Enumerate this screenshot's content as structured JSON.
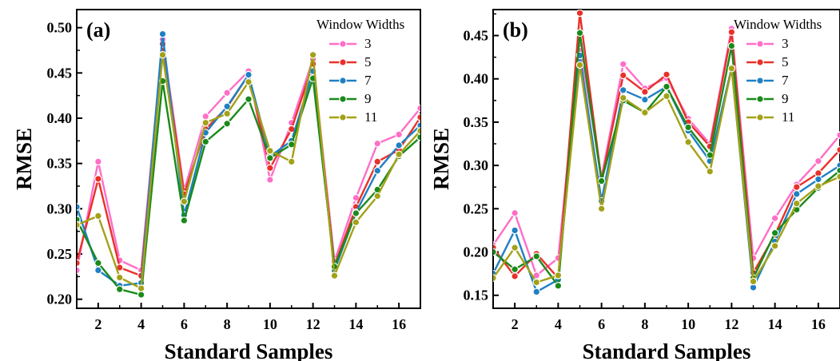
{
  "chart_data": [
    {
      "type": "line",
      "panel_label": "(a)",
      "xlabel": "Standard Samples",
      "ylabel": "RMSE",
      "xlim": [
        1,
        17
      ],
      "ylim": [
        0.19,
        0.52
      ],
      "x_ticks": [
        2,
        4,
        6,
        8,
        10,
        12,
        14,
        16
      ],
      "y_ticks": [
        0.2,
        0.25,
        0.3,
        0.35,
        0.4,
        0.45,
        0.5
      ],
      "y_tick_labels": [
        "0.20",
        "0.25",
        "0.30",
        "0.35",
        "0.40",
        "0.45",
        "0.50"
      ],
      "legend_title": "Window Widths",
      "legend_position": "top-right",
      "x": [
        1,
        2,
        3,
        4,
        5,
        6,
        7,
        8,
        9,
        10,
        11,
        12,
        13,
        14,
        15,
        16,
        17
      ],
      "series": [
        {
          "name": "3",
          "color": "#ff6ec7",
          "values": [
            0.232,
            0.352,
            0.243,
            0.232,
            0.487,
            0.32,
            0.402,
            0.428,
            0.452,
            0.332,
            0.395,
            0.465,
            0.242,
            0.312,
            0.372,
            0.382,
            0.411
          ]
        },
        {
          "name": "5",
          "color": "#e8312a",
          "values": [
            0.24,
            0.333,
            0.235,
            0.226,
            0.482,
            0.316,
            0.388,
            0.412,
            0.448,
            0.345,
            0.388,
            0.46,
            0.237,
            0.302,
            0.352,
            0.365,
            0.401
          ]
        },
        {
          "name": "7",
          "color": "#1f80c3",
          "values": [
            0.302,
            0.232,
            0.215,
            0.218,
            0.493,
            0.293,
            0.384,
            0.413,
            0.448,
            0.358,
            0.375,
            0.452,
            0.232,
            0.296,
            0.342,
            0.37,
            0.392
          ]
        },
        {
          "name": "9",
          "color": "#1a8a1a",
          "values": [
            0.288,
            0.24,
            0.211,
            0.205,
            0.441,
            0.287,
            0.374,
            0.394,
            0.421,
            0.356,
            0.371,
            0.444,
            0.236,
            0.295,
            0.321,
            0.358,
            0.379
          ]
        },
        {
          "name": "11",
          "color": "#a3a118",
          "values": [
            0.282,
            0.292,
            0.224,
            0.212,
            0.47,
            0.308,
            0.395,
            0.405,
            0.44,
            0.364,
            0.352,
            0.47,
            0.226,
            0.285,
            0.314,
            0.36,
            0.386
          ]
        }
      ]
    },
    {
      "type": "line",
      "panel_label": "(b)",
      "xlabel": "Standard Samples",
      "ylabel": "RMSE",
      "xlim": [
        1,
        17
      ],
      "ylim": [
        0.135,
        0.48
      ],
      "x_ticks": [
        2,
        4,
        6,
        8,
        10,
        12,
        14,
        16
      ],
      "y_ticks": [
        0.15,
        0.2,
        0.25,
        0.3,
        0.35,
        0.4,
        0.45
      ],
      "y_tick_labels": [
        "0.15",
        "0.20",
        "0.25",
        "0.30",
        "0.35",
        "0.40",
        "0.45"
      ],
      "legend_title": "Window Widths",
      "legend_position": "top-right",
      "x": [
        1,
        2,
        3,
        4,
        5,
        6,
        7,
        8,
        9,
        10,
        11,
        12,
        13,
        14,
        15,
        16,
        17
      ],
      "series": [
        {
          "name": "3",
          "color": "#ff6ec7",
          "values": [
            0.208,
            0.245,
            0.173,
            0.193,
            0.44,
            0.286,
            0.417,
            0.389,
            0.401,
            0.354,
            0.325,
            0.458,
            0.193,
            0.239,
            0.278,
            0.305,
            0.335
          ]
        },
        {
          "name": "5",
          "color": "#e8312a",
          "values": [
            0.205,
            0.172,
            0.198,
            0.17,
            0.476,
            0.283,
            0.404,
            0.385,
            0.405,
            0.35,
            0.322,
            0.454,
            0.176,
            0.22,
            0.275,
            0.291,
            0.318
          ]
        },
        {
          "name": "7",
          "color": "#1f80c3",
          "values": [
            0.175,
            0.225,
            0.154,
            0.168,
            0.427,
            0.259,
            0.387,
            0.376,
            0.391,
            0.34,
            0.305,
            0.413,
            0.159,
            0.212,
            0.267,
            0.284,
            0.3
          ]
        },
        {
          "name": "9",
          "color": "#1a8a1a",
          "values": [
            0.2,
            0.18,
            0.195,
            0.161,
            0.453,
            0.282,
            0.375,
            0.361,
            0.391,
            0.344,
            0.312,
            0.438,
            0.17,
            0.222,
            0.249,
            0.274,
            0.294
          ]
        },
        {
          "name": "11",
          "color": "#a3a118",
          "values": [
            0.17,
            0.205,
            0.165,
            0.173,
            0.416,
            0.25,
            0.378,
            0.361,
            0.38,
            0.327,
            0.293,
            0.412,
            0.166,
            0.207,
            0.256,
            0.276,
            0.287
          ]
        }
      ]
    }
  ]
}
